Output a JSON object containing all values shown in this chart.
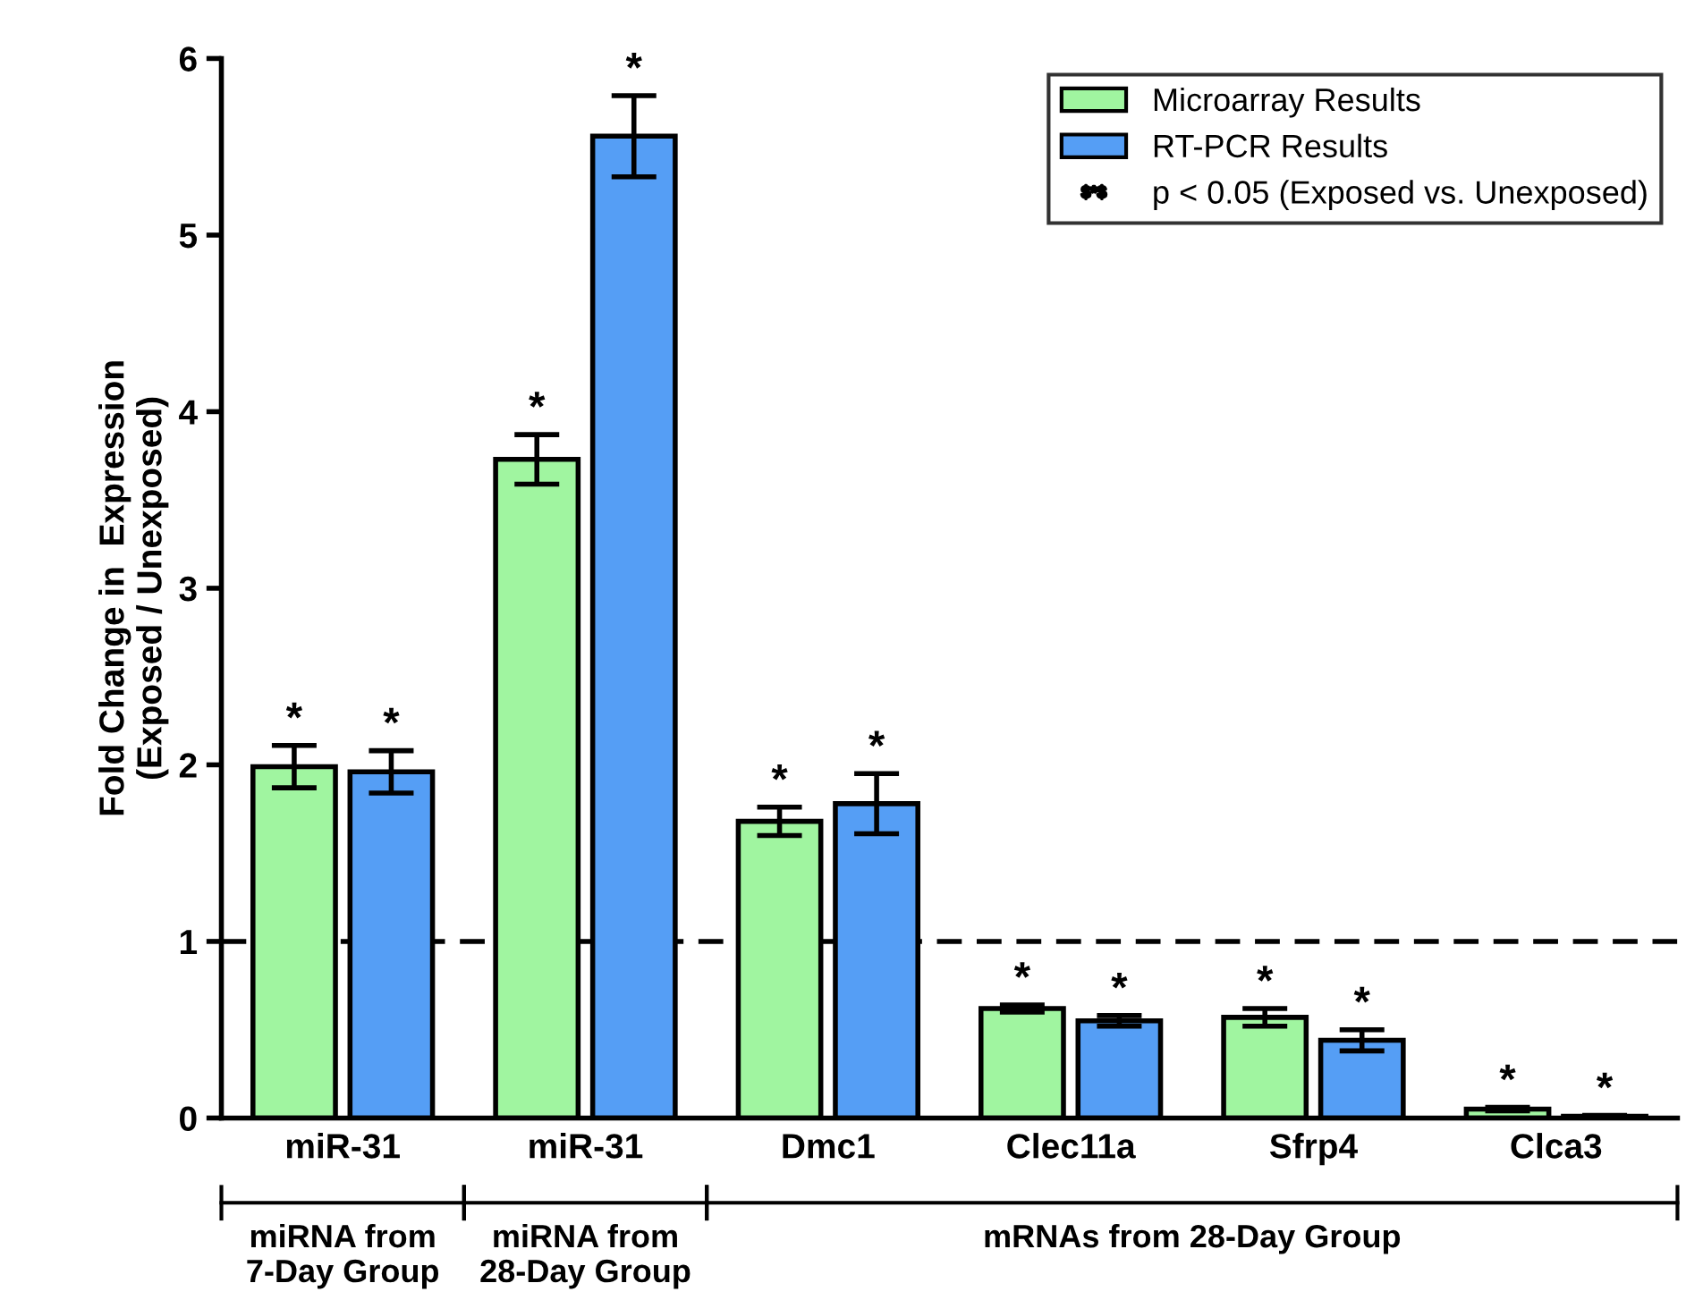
{
  "chart_data": {
    "type": "bar",
    "ylabel": "Fold Change in  Expression\n(Exposed / Unexposed)",
    "categories": [
      "miR-31",
      "miR-31",
      "Dmc1",
      "Clec11a",
      "Sfrp4",
      "Clca3"
    ],
    "series": [
      {
        "name": "Microarray Results",
        "color": "#a0f5a0",
        "values": [
          1.99,
          3.73,
          1.68,
          0.62,
          0.57,
          0.05
        ],
        "errors": [
          0.12,
          0.14,
          0.08,
          0.02,
          0.05,
          0.01
        ],
        "value_labels": [
          "*",
          "*",
          "*",
          "*",
          "*",
          "*"
        ]
      },
      {
        "name": "RT-PCR Results",
        "color": "#559ef5",
        "values": [
          1.96,
          5.56,
          1.78,
          0.55,
          0.44,
          0.01
        ],
        "errors": [
          0.12,
          0.23,
          0.17,
          0.03,
          0.06,
          0.005
        ],
        "value_labels": [
          "*",
          "*",
          "*",
          "*",
          "*",
          "*"
        ]
      }
    ],
    "ylim": [
      0,
      6
    ],
    "yticks": [
      0,
      1,
      2,
      3,
      4,
      5,
      6
    ],
    "ref_lines": [
      {
        "axis": "y",
        "value": 1,
        "line_style": "dashed",
        "color": "#000000"
      }
    ],
    "annotations": [
      "miRNA from\n7-Day Group",
      "miRNA from\n28-Day Group",
      "mRNAs from 28-Day Group",
      "p < 0.05 (Exposed vs. Unexposed)"
    ],
    "legend": "top right",
    "grid": false
  }
}
